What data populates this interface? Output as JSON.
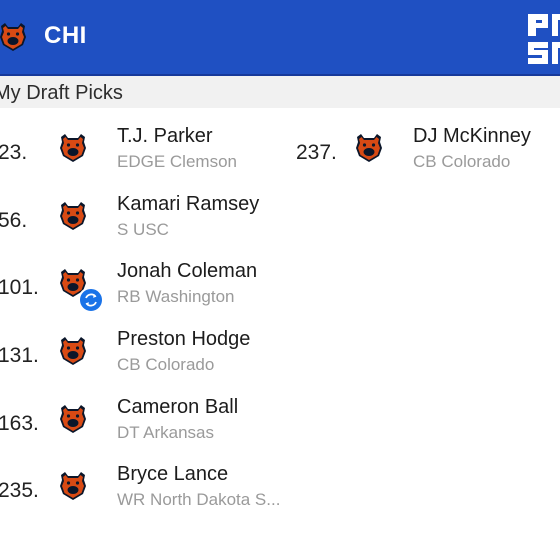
{
  "header": {
    "team_abbr": "CHI",
    "team_icon": "bears-logo-icon",
    "brand_icon": "pff-logo-icon"
  },
  "section": {
    "title": "My Draft Picks"
  },
  "colors": {
    "header_bg": "#1f50c2",
    "logo_orange": "#d84a14",
    "logo_navy": "#0b162a",
    "badge_blue": "#1a73e8"
  },
  "picks": [
    {
      "number": "23.",
      "name": "T.J. Parker",
      "detail": "EDGE Clemson"
    },
    {
      "number": "56.",
      "name": "Kamari Ramsey",
      "detail": "S USC"
    },
    {
      "number": "101.",
      "name": "Jonah Coleman",
      "detail": "RB Washington",
      "badge_icon": "swap-icon"
    },
    {
      "number": "131.",
      "name": "Preston Hodge",
      "detail": "CB Colorado"
    },
    {
      "number": "163.",
      "name": "Cameron Ball",
      "detail": "DT Arkansas"
    },
    {
      "number": "235.",
      "name": "Bryce Lance",
      "detail": "WR North Dakota S..."
    },
    {
      "number": "237.",
      "name": "DJ McKinney",
      "detail": "CB Colorado"
    }
  ]
}
